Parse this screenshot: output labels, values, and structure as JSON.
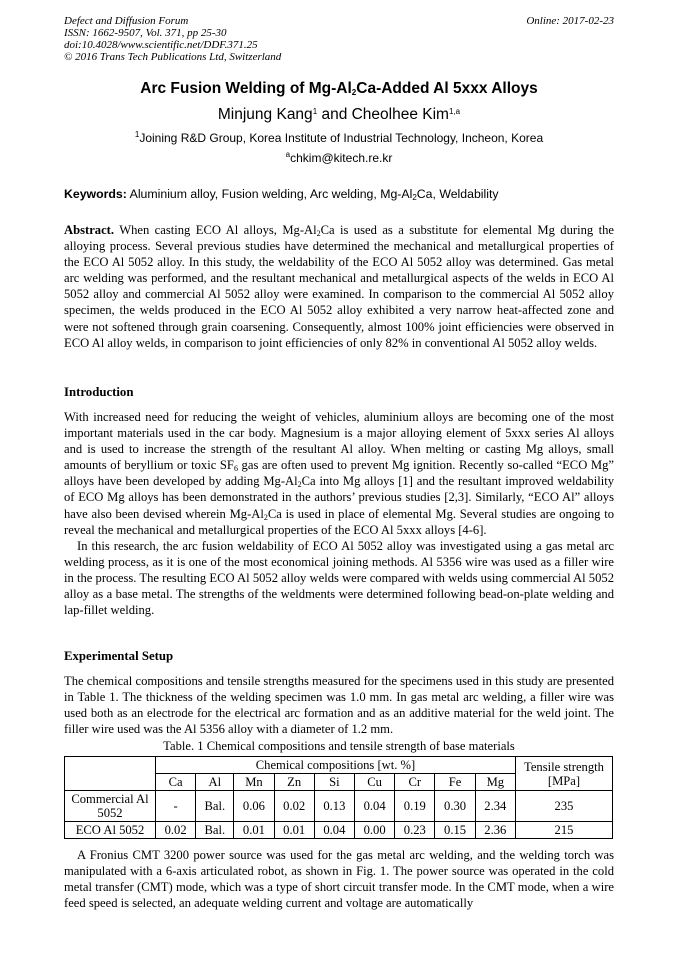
{
  "header": {
    "journal": "Defect and Diffusion Forum",
    "issn": "ISSN: 1662-9507, Vol. 371, pp 25-30",
    "doi": "doi:10.4028/www.scientific.net/DDF.371.25",
    "copyright": "© 2016 Trans Tech Publications Ltd, Switzerland",
    "online": "Online: 2017-02-23"
  },
  "title": {
    "a": "Arc Fusion Welding of Mg-Al",
    "sub": "2",
    "b": "Ca-Added Al 5xxx Alloys"
  },
  "authors": {
    "a1": "Minjung Kang",
    "s1": "1",
    "mid": " and Cheolhee Kim",
    "s2": "1,a"
  },
  "affiliation": {
    "sup": "1",
    "text": "Joining R&D Group, Korea Institute of Industrial Technology, Incheon, Korea"
  },
  "email": {
    "sup": "a",
    "text": "chkim@kitech.re.kr"
  },
  "keywords": {
    "label": "Keywords:",
    "a": " Aluminium alloy, Fusion welding, Arc welding, Mg-Al",
    "sub": "2",
    "b": "Ca, Weldability"
  },
  "abstract": {
    "label": "Abstract.",
    "a": " When casting ECO Al alloys, Mg-Al",
    "sub": "2",
    "b": "Ca is used as a substitute for elemental Mg during the alloying process. Several previous studies have determined the mechanical and metallurgical properties of the ECO Al 5052 alloy. In this study, the weldability of the ECO Al 5052 alloy was determined. Gas metal arc welding was performed, and the resultant mechanical and metallurgical aspects of the welds in ECO Al 5052 alloy and commercial Al 5052 alloy were examined. In comparison to the commercial Al 5052 alloy specimen, the welds produced in the ECO Al 5052 alloy exhibited a very narrow heat-affected zone and were not softened through grain coarsening. Consequently, almost 100% joint efficiencies were observed in ECO Al alloy welds, in comparison to joint efficiencies of only 82% in conventional Al 5052 alloy welds."
  },
  "intro": {
    "heading": "Introduction",
    "p1a": "With increased need for reducing the weight of vehicles, aluminium alloys are becoming one of the most important materials used in the car body. Magnesium is a major alloying element of 5xxx series Al alloys and is used to increase the strength of the resultant Al alloy. When melting or casting Mg alloys, small amounts of beryllium or toxic SF",
    "p1s1": "6",
    "p1b": " gas are often used to prevent Mg ignition. Recently so-called “ECO Mg” alloys have been developed by adding Mg-Al",
    "p1s2": "2",
    "p1c": "Ca into Mg alloys [1] and the resultant improved weldability of ECO Mg alloys has been demonstrated in the authors’ previous studies [2,3]. Similarly, “ECO Al” alloys have also been devised wherein Mg-Al",
    "p1s3": "2",
    "p1d": "Ca is used in place of elemental Mg. Several studies are ongoing to reveal the mechanical and metallurgical properties of the ECO Al 5xxx alloys [4-6].",
    "p2": "In this research, the arc fusion weldability of ECO Al 5052 alloy was investigated using a gas metal arc welding process, as it is one of the most economical joining methods. Al 5356 wire was used as a filler wire in the process. The resulting ECO Al 5052 alloy welds were compared with welds using commercial Al 5052 alloy as a base metal. The strengths of the weldments were determined following bead-on-plate welding and lap-fillet welding."
  },
  "setup": {
    "heading": "Experimental Setup",
    "p1": "The chemical compositions and tensile strengths measured for the specimens used in this study are presented in Table 1. The thickness of the welding specimen was 1.0 mm. In gas metal arc welding, a filler wire was used both as an electrode for the electrical arc formation and as an additive material for the weld joint. The filler wire used was the Al 5356 alloy with a diameter of 1.2 mm.",
    "p2": "A Fronius CMT 3200 power source was used for the gas metal arc welding, and the welding torch was manipulated with a 6-axis articulated robot, as shown in Fig. 1. The power source was operated in the cold metal transfer (CMT) mode, which was a type of short circuit transfer mode. In the CMT mode, when a wire feed speed is selected, an adequate welding current and voltage are automatically"
  },
  "table": {
    "caption": "Table. 1 Chemical compositions and tensile strength of base materials",
    "group": "Chemical compositions [wt. %]",
    "tensile": "Tensile strength [MPa]",
    "elements": [
      "Ca",
      "Al",
      "Mn",
      "Zn",
      "Si",
      "Cu",
      "Cr",
      "Fe",
      "Mg"
    ],
    "rows": [
      {
        "name": "Commercial Al 5052",
        "values": [
          "-",
          "Bal.",
          "0.06",
          "0.02",
          "0.13",
          "0.04",
          "0.19",
          "0.30",
          "2.34"
        ],
        "tensile": "235"
      },
      {
        "name": "ECO Al 5052",
        "values": [
          "0.02",
          "Bal.",
          "0.01",
          "0.01",
          "0.04",
          "0.00",
          "0.23",
          "0.15",
          "2.36"
        ],
        "tensile": "215"
      }
    ]
  }
}
